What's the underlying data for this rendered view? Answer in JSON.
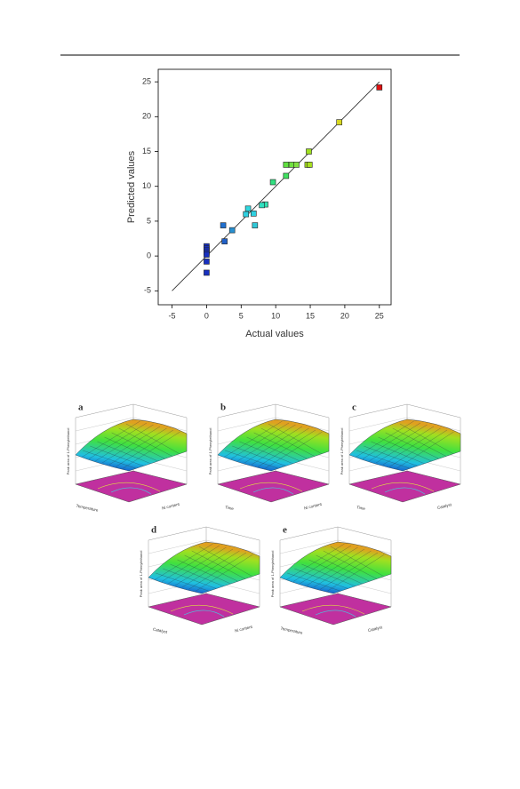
{
  "chart_data": {
    "type": "scatter",
    "xlabel": "Actual values",
    "ylabel": "Predicted values",
    "xlim": [
      -7,
      26.7
    ],
    "ylim": [
      -7,
      26.8
    ],
    "xticks": [
      -5,
      0,
      5,
      10,
      15,
      20,
      25
    ],
    "yticks": [
      -5,
      0,
      5,
      10,
      15,
      20,
      25
    ],
    "x": [
      25,
      19.2,
      14.8,
      14.6,
      14.9,
      11.5,
      12.3,
      13.0,
      11.5,
      9.6,
      8.5,
      8.0,
      6.0,
      5.7,
      6.8,
      7.0,
      3.7,
      2.4,
      2.6,
      0,
      0,
      0,
      0,
      0,
      0,
      0
    ],
    "y": [
      24.2,
      19.2,
      15.0,
      13.1,
      13.1,
      13.1,
      13.1,
      13.1,
      11.5,
      10.6,
      7.4,
      7.3,
      6.8,
      6.0,
      6.1,
      4.4,
      3.7,
      4.4,
      2.1,
      1.4,
      1.1,
      0.8,
      0.5,
      0.2,
      -0.8,
      -2.4
    ],
    "colors": [
      "#e01010",
      "#d8d820",
      "#a0e020",
      "#a8e020",
      "#a8e020",
      "#60e040",
      "#70e040",
      "#80e040",
      "#40e060",
      "#30e080",
      "#30e0b0",
      "#30e0c0",
      "#30d8e0",
      "#30d0e0",
      "#30d0e0",
      "#30c8d8",
      "#2890d0",
      "#2070d0",
      "#2060c8",
      "#1830c0",
      "#1830c0",
      "#1830c0",
      "#1830c0",
      "#1830c0",
      "#1830c0",
      "#1830c0"
    ],
    "fit_line": {
      "x": [
        -5,
        25
      ],
      "y": [
        -5,
        25
      ]
    }
  },
  "panels": [
    {
      "letter": "a",
      "zlabel": "Peak area of 1-Phenylethanol",
      "xlabel": "Temperature",
      "ylabel": "Ni content"
    },
    {
      "letter": "b",
      "zlabel": "Peak area of 1-Phenylethanol",
      "xlabel": "Time",
      "ylabel": "Ni content"
    },
    {
      "letter": "c",
      "zlabel": "Peak area of 1-Phenylethanol",
      "xlabel": "Time",
      "ylabel": "Catalyst"
    },
    {
      "letter": "d",
      "zlabel": "Peak area of 1-Phenylethanol",
      "xlabel": "Catalyst",
      "ylabel": "Ni content"
    },
    {
      "letter": "e",
      "zlabel": "Peak area of 1-Phenylethanol",
      "xlabel": "Temperature",
      "ylabel": "Catalyst"
    }
  ]
}
